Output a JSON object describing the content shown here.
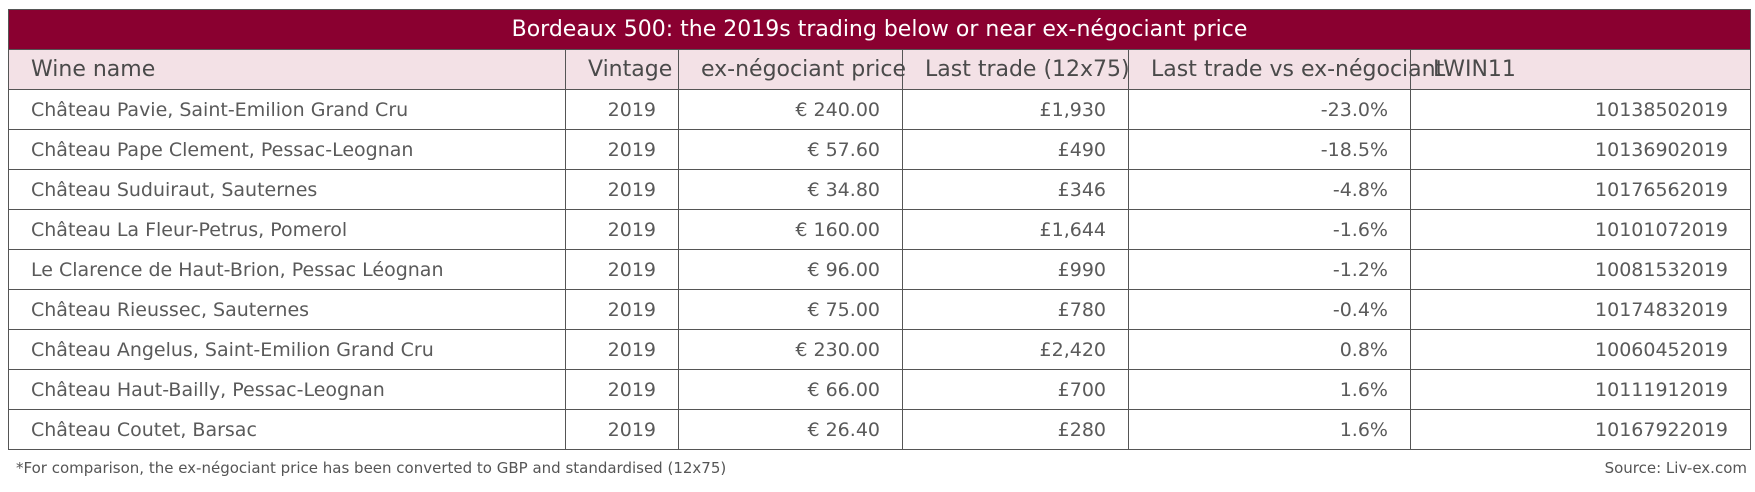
{
  "table": {
    "title": "Bordeaux 500: the 2019s trading below or near ex-négociant price",
    "columns": [
      "Wine name",
      "Vintage",
      "ex-négociant price",
      "Last trade (12x75)",
      "Last trade vs ex-négociant",
      "LWIN11"
    ],
    "rows": [
      [
        "Château Pavie, Saint-Emilion Grand Cru",
        "2019",
        "€ 240.00",
        "£1,930",
        "-23.0%",
        "10138502019"
      ],
      [
        "Château Pape Clement, Pessac-Leognan",
        "2019",
        "€ 57.60",
        "£490",
        "-18.5%",
        "10136902019"
      ],
      [
        "Château Suduiraut, Sauternes",
        "2019",
        "€ 34.80",
        "£346",
        "-4.8%",
        "10176562019"
      ],
      [
        "Château La Fleur-Petrus, Pomerol",
        "2019",
        "€ 160.00",
        "£1,644",
        "-1.6%",
        "10101072019"
      ],
      [
        "Le Clarence de Haut-Brion, Pessac Léognan",
        "2019",
        "€ 96.00",
        "£990",
        "-1.2%",
        "10081532019"
      ],
      [
        "Château Rieussec, Sauternes",
        "2019",
        "€ 75.00",
        "£780",
        "-0.4%",
        "10174832019"
      ],
      [
        "Château Angelus, Saint-Emilion Grand Cru",
        "2019",
        "€ 230.00",
        "£2,420",
        "0.8%",
        "10060452019"
      ],
      [
        "Château Haut-Bailly, Pessac-Leognan",
        "2019",
        "€ 66.00",
        "£700",
        "1.6%",
        "10111912019"
      ],
      [
        "Château Coutet, Barsac",
        "2019",
        "€ 26.40",
        "£280",
        "1.6%",
        "10167922019"
      ]
    ]
  },
  "footer": {
    "footnote": "*For comparison, the ex-négociant price has been converted to GBP and standardised (12x75)",
    "source": "Source: Liv-ex.com"
  },
  "colors": {
    "title_background": "#8a0030",
    "header_background": "#f3e1e6",
    "border": "#555555"
  }
}
